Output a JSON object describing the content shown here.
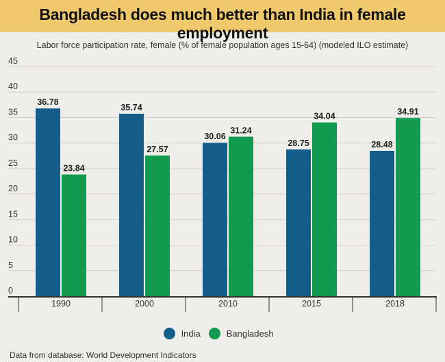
{
  "title": "Bangladesh does much better than India in female employment",
  "subtitle": "Labor force participation rate, female (% of female population ages 15-64) (modeled ILO estimate)",
  "source": "Data from database: World Development Indicators",
  "colors": {
    "title_band": "#efc96b",
    "India": "#125d8a",
    "Bangladesh": "#129a50"
  },
  "chart_data": {
    "type": "bar",
    "title": "Bangladesh does much better than India in female employment",
    "subtitle": "Labor force participation rate, female (% of female population ages 15-64) (modeled ILO estimate)",
    "xlabel": "",
    "ylabel": "",
    "categories": [
      "1990",
      "2000",
      "2010",
      "2015",
      "2018"
    ],
    "series": [
      {
        "name": "India",
        "values": [
          36.78,
          35.74,
          30.06,
          28.75,
          28.48
        ]
      },
      {
        "name": "Bangladesh",
        "values": [
          23.84,
          27.57,
          31.24,
          34.04,
          34.91
        ]
      }
    ],
    "value_labels": {
      "India": [
        "36.78",
        "35.74",
        "30.06",
        "28.75",
        "28.48"
      ],
      "Bangladesh": [
        "23.84",
        "27.57",
        "31.24",
        "34.04",
        "34.91"
      ]
    },
    "ylim": [
      0,
      45
    ],
    "yticks": [
      0,
      5,
      10,
      15,
      20,
      25,
      30,
      35,
      40,
      45
    ],
    "grid": true,
    "legend": "bottom-center"
  }
}
